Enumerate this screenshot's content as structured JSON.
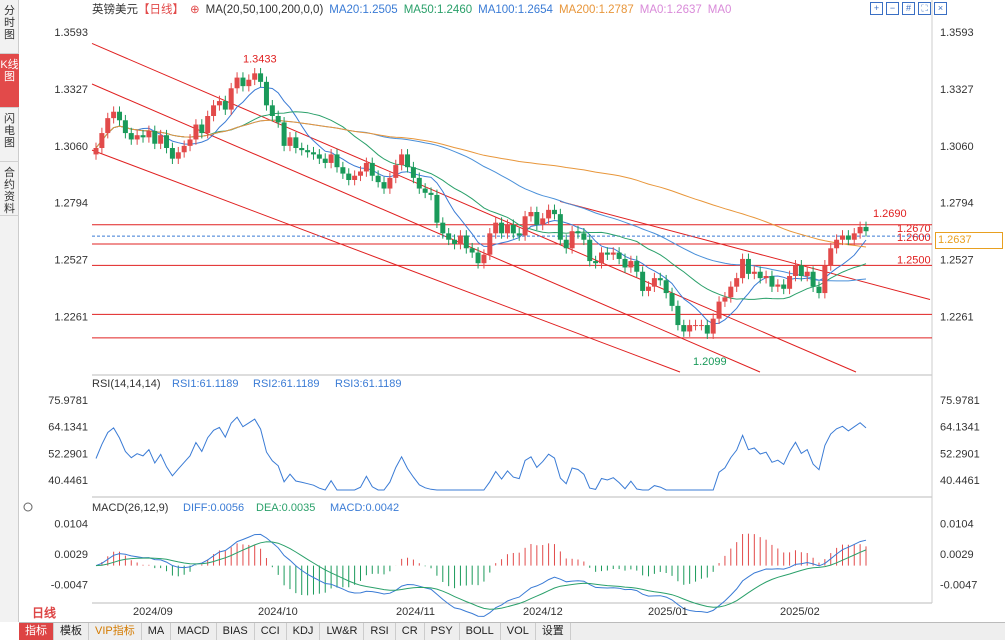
{
  "side_tabs": [
    {
      "label": "分时图"
    },
    {
      "label": "K线图"
    },
    {
      "label": "闪电图"
    },
    {
      "label": "合约资料"
    }
  ],
  "active_side_tab": 1,
  "header": {
    "symbol": "英镑美元",
    "period_tag": "【日线】",
    "ma_label": "MA(20,50,100,200,0,0)",
    "ma20": "MA20:1.2505",
    "ma50": "MA50:1.2460",
    "ma100": "MA100:1.2654",
    "ma200": "MA200:1.2787",
    "ma0a": "MA0:1.2637",
    "ma0b": "MA0"
  },
  "colors": {
    "ma20": "#3a7bd5",
    "ma50": "#2aa06a",
    "ma100": "#3a7bd5",
    "ma200": "#e8963a",
    "ma0": "#d98ad9",
    "up": "#e24a4a",
    "down": "#1a9a5a",
    "channel": "#e02020"
  },
  "price_axis": {
    "ticks": [
      "1.3593",
      "1.3327",
      "1.3060",
      "1.2794",
      "1.2527",
      "1.2261"
    ],
    "current": "1.2637"
  },
  "price_annotations": {
    "high": "1.3433",
    "low": "1.2099",
    "h2690": "1.2690",
    "h2670": "1.2670",
    "h2600": "1.2600",
    "h2500": "1.2500"
  },
  "rsi": {
    "title": "RSI(14,14,14)",
    "rsi1": "RSI1:61.1189",
    "rsi2": "RSI2:61.1189",
    "rsi3": "RSI3:61.1189",
    "ticks": [
      "75.9781",
      "64.1341",
      "52.2901",
      "40.4461"
    ]
  },
  "macd": {
    "title": "MACD(26,12,9)",
    "diff": "DIFF:0.0056",
    "dea": "DEA:0.0035",
    "macd": "MACD:0.0042",
    "ticks": [
      "0.0104",
      "0.0029",
      "-0.0047"
    ]
  },
  "x_axis": {
    "labels": [
      "2024/09",
      "2024/10",
      "2024/11",
      "2024/12",
      "2025/01",
      "2025/02"
    ]
  },
  "period_label": "日线",
  "bottom_tabs": [
    {
      "label": "指标"
    },
    {
      "label": "模板"
    },
    {
      "label": "VIP指标"
    },
    {
      "label": "MA"
    },
    {
      "label": "MACD"
    },
    {
      "label": "BIAS"
    },
    {
      "label": "CCI"
    },
    {
      "label": "KDJ"
    },
    {
      "label": "LW&R"
    },
    {
      "label": "RSI"
    },
    {
      "label": "CR"
    },
    {
      "label": "PSY"
    },
    {
      "label": "BOLL"
    },
    {
      "label": "VOL"
    },
    {
      "label": "设置"
    }
  ],
  "toolbar_icons": [
    "zoom-in-icon",
    "zoom-out-icon",
    "grid-icon",
    "fullscreen-icon",
    "close-icon"
  ],
  "chart_data": {
    "type": "candlestick",
    "title": "英镑美元 日线",
    "ylim": [
      1.2,
      1.365
    ],
    "closes": [
      1.305,
      1.312,
      1.319,
      1.322,
      1.318,
      1.312,
      1.309,
      1.311,
      1.31,
      1.313,
      1.307,
      1.311,
      1.305,
      1.3,
      1.303,
      1.306,
      1.309,
      1.316,
      1.312,
      1.32,
      1.325,
      1.327,
      1.323,
      1.333,
      1.338,
      1.334,
      1.337,
      1.34,
      1.336,
      1.325,
      1.32,
      1.317,
      1.306,
      1.31,
      1.305,
      1.304,
      1.303,
      1.302,
      1.3,
      1.298,
      1.302,
      1.296,
      1.293,
      1.29,
      1.292,
      1.294,
      1.298,
      1.292,
      1.289,
      1.286,
      1.291,
      1.297,
      1.302,
      1.296,
      1.291,
      1.286,
      1.284,
      1.283,
      1.27,
      1.265,
      1.262,
      1.26,
      1.264,
      1.258,
      1.256,
      1.251,
      1.255,
      1.265,
      1.27,
      1.265,
      1.269,
      1.265,
      1.264,
      1.273,
      1.275,
      1.269,
      1.272,
      1.276,
      1.274,
      1.262,
      1.258,
      1.266,
      1.265,
      1.262,
      1.252,
      1.251,
      1.256,
      1.255,
      1.256,
      1.253,
      1.249,
      1.252,
      1.247,
      1.238,
      1.24,
      1.244,
      1.243,
      1.237,
      1.231,
      1.222,
      1.219,
      1.222,
      1.222,
      1.222,
      1.218,
      1.225,
      1.233,
      1.235,
      1.24,
      1.244,
      1.253,
      1.246,
      1.247,
      1.244,
      1.245,
      1.24,
      1.241,
      1.239,
      1.245,
      1.25,
      1.245,
      1.247,
      1.24,
      1.237,
      1.25,
      1.258,
      1.262,
      1.264,
      1.262,
      1.265,
      1.268,
      1.266
    ]
  }
}
